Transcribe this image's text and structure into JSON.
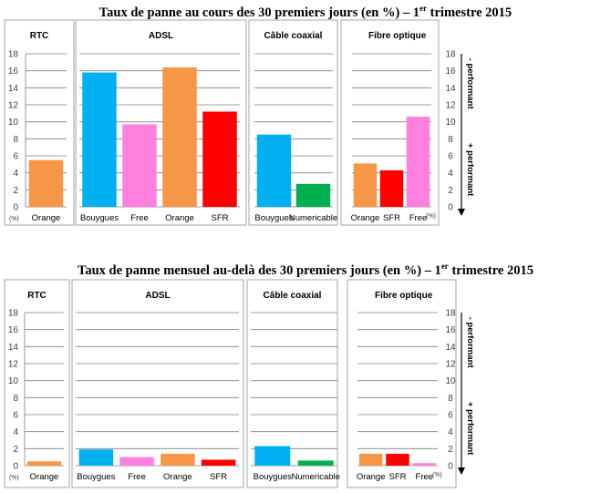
{
  "colors": {
    "Orange": "#F79646",
    "Bouygues": "#00B0F0",
    "Free": "#FF80DF",
    "SFR": "#FF0000",
    "Numericable": "#00B050"
  },
  "chart_data": [
    {
      "type": "bar",
      "title_main": "Taux de panne au cours des 30 premiers jours (en %) – 1",
      "title_sup": "er",
      "title_end": " trimestre 2015",
      "ylim": [
        0,
        18
      ],
      "yticks": [
        0,
        2,
        4,
        6,
        8,
        10,
        12,
        14,
        16,
        18
      ],
      "unit_label": "(%)",
      "right_unit_label": "(%)",
      "annot_top": "- performant",
      "annot_bottom": "+ performant",
      "panels": [
        {
          "title": "RTC",
          "categories": [
            "Orange"
          ],
          "values": [
            5.5
          ]
        },
        {
          "title": "ADSL",
          "categories": [
            "Bouygues",
            "Free",
            "Orange",
            "SFR"
          ],
          "values": [
            15.8,
            9.7,
            16.4,
            11.2
          ]
        },
        {
          "title": "Câble coaxial",
          "categories": [
            "Bouygues",
            "Numericable"
          ],
          "values": [
            8.5,
            2.7
          ]
        },
        {
          "title": "Fibre optique",
          "categories": [
            "Orange",
            "SFR",
            "Free"
          ],
          "values": [
            5.1,
            4.3,
            10.6
          ]
        }
      ]
    },
    {
      "type": "bar",
      "title_main": "Taux de panne mensuel  au-delà des 30 premiers jours (en %) – 1",
      "title_sup": "er",
      "title_end": " trimestre 2015",
      "ylim": [
        0,
        18
      ],
      "yticks": [
        0,
        2,
        4,
        6,
        8,
        10,
        12,
        14,
        16,
        18
      ],
      "unit_label": "(%)",
      "right_unit_label": "(%)",
      "annot_top": "- performant",
      "annot_bottom": "+ performant",
      "panels": [
        {
          "title": "RTC",
          "categories": [
            "Orange"
          ],
          "values": [
            0.5
          ]
        },
        {
          "title": "ADSL",
          "categories": [
            "Bouygues",
            "Free",
            "Orange",
            "SFR"
          ],
          "values": [
            1.9,
            1.0,
            1.4,
            0.7
          ]
        },
        {
          "title": "Câble coaxial",
          "categories": [
            "Bouygues",
            "Numericable"
          ],
          "values": [
            2.3,
            0.6
          ]
        },
        {
          "title": "Fibre optique",
          "categories": [
            "Orange",
            "SFR",
            "Free"
          ],
          "values": [
            1.4,
            1.4,
            0.3
          ]
        }
      ]
    }
  ]
}
